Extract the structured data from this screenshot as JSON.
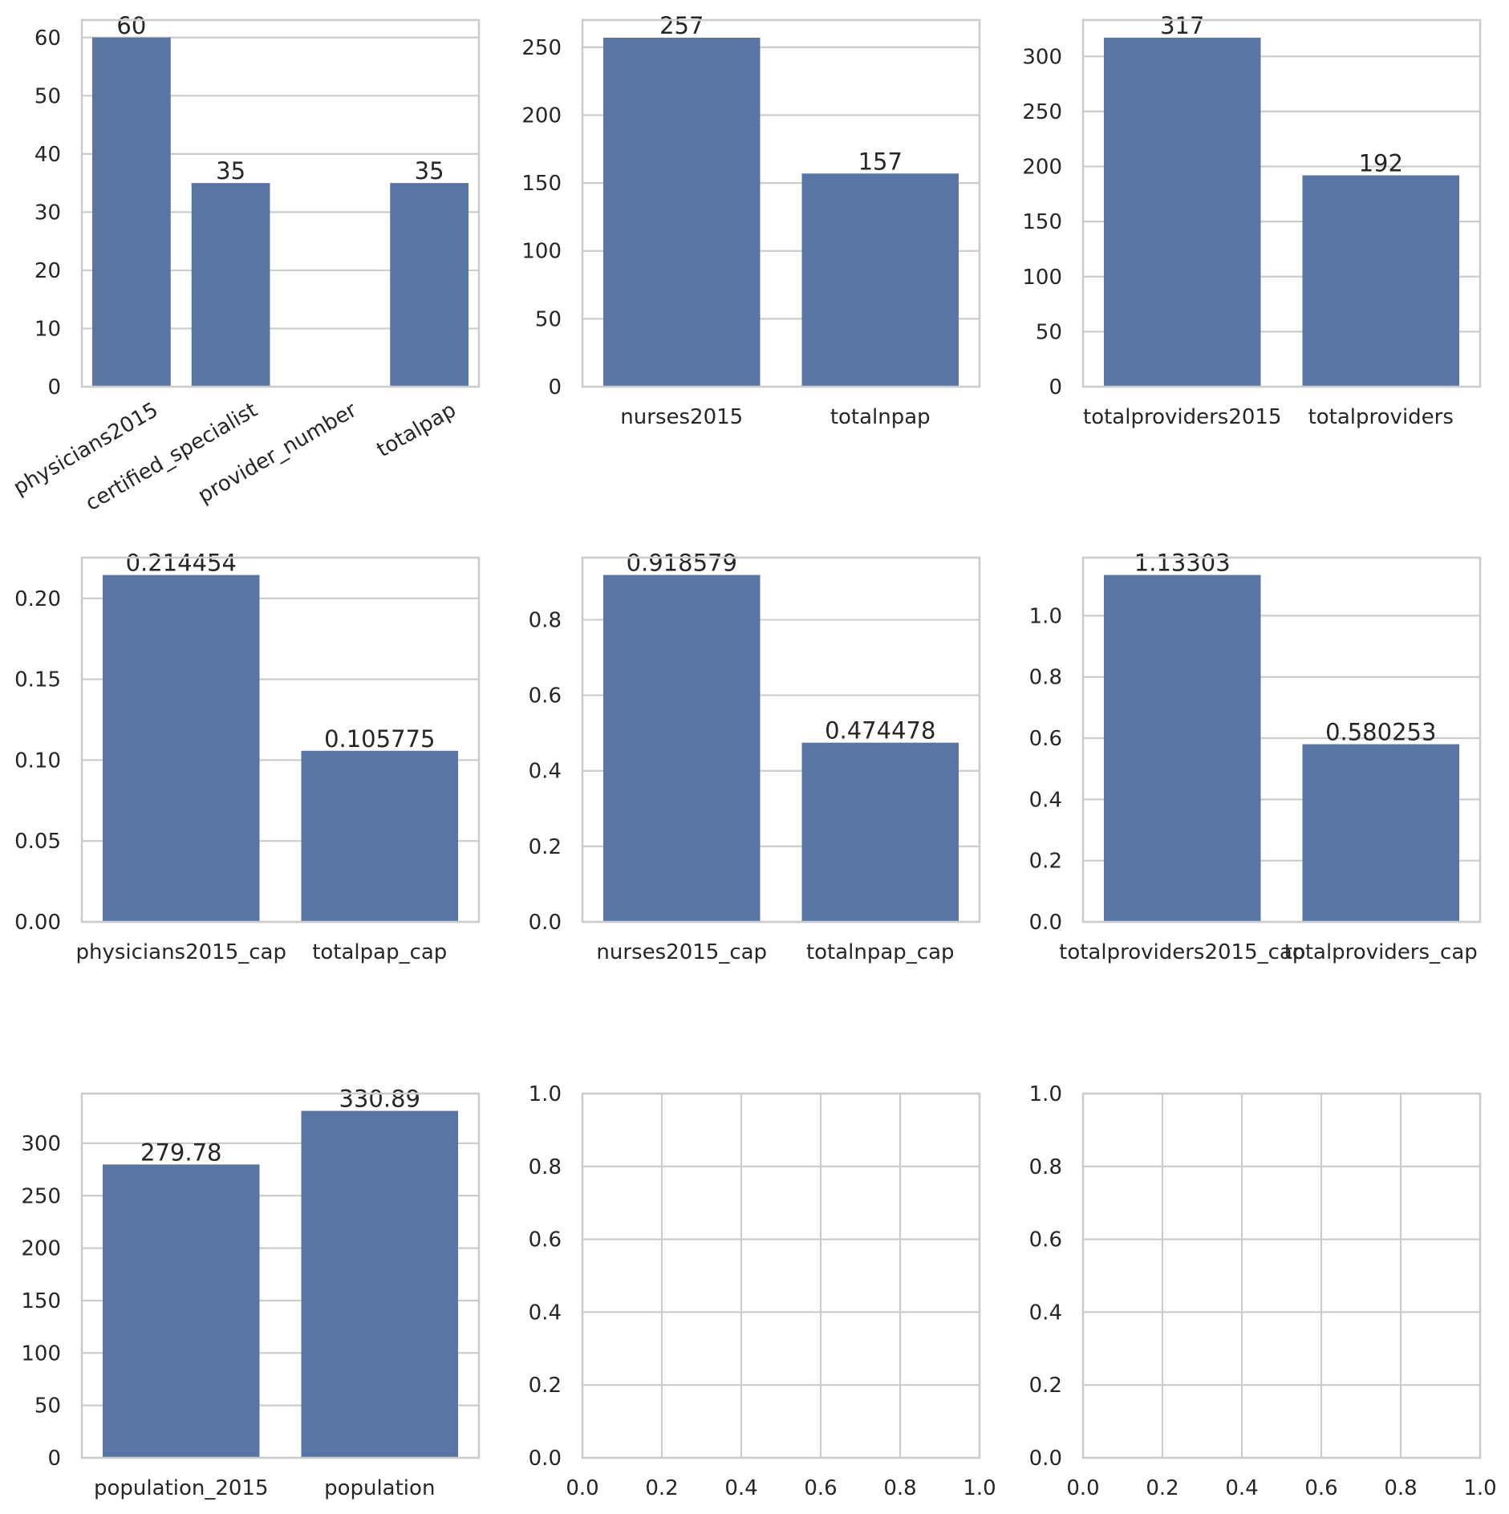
{
  "chart_data": [
    {
      "type": "bar",
      "categories": [
        "physicians2015",
        "certified_specialist",
        "provider_number",
        "totalpap"
      ],
      "values": [
        60,
        35,
        null,
        35
      ],
      "bar_labels": [
        "60",
        "35",
        "",
        "35"
      ],
      "ylim": [
        0,
        63
      ],
      "yticks": [
        0,
        10,
        20,
        30,
        40,
        50,
        60
      ],
      "ytick_labels": [
        "0",
        "10",
        "20",
        "30",
        "40",
        "50",
        "60"
      ],
      "xtick_rotation": 30,
      "grid": true
    },
    {
      "type": "bar",
      "categories": [
        "nurses2015",
        "totalnpap"
      ],
      "values": [
        257,
        157
      ],
      "bar_labels": [
        "257",
        "157"
      ],
      "ylim": [
        0,
        270
      ],
      "yticks": [
        0,
        50,
        100,
        150,
        200,
        250
      ],
      "ytick_labels": [
        "0",
        "50",
        "100",
        "150",
        "200",
        "250"
      ],
      "grid": true
    },
    {
      "type": "bar",
      "categories": [
        "totalproviders2015",
        "totalproviders"
      ],
      "values": [
        317,
        192
      ],
      "bar_labels": [
        "317",
        "192"
      ],
      "ylim": [
        0,
        333
      ],
      "yticks": [
        0,
        50,
        100,
        150,
        200,
        250,
        300
      ],
      "ytick_labels": [
        "0",
        "50",
        "100",
        "150",
        "200",
        "250",
        "300"
      ],
      "grid": true
    },
    {
      "type": "bar",
      "categories": [
        "physicians2015_cap",
        "totalpap_cap"
      ],
      "values": [
        0.214454,
        0.105775
      ],
      "bar_labels": [
        "0.214454",
        "0.105775"
      ],
      "ylim": [
        0,
        0.2252
      ],
      "yticks": [
        0.0,
        0.05,
        0.1,
        0.15,
        0.2
      ],
      "ytick_labels": [
        "0.00",
        "0.05",
        "0.10",
        "0.15",
        "0.20"
      ],
      "grid": true
    },
    {
      "type": "bar",
      "categories": [
        "nurses2015_cap",
        "totalnpap_cap"
      ],
      "values": [
        0.918579,
        0.474478
      ],
      "bar_labels": [
        "0.918579",
        "0.474478"
      ],
      "ylim": [
        0,
        0.9645
      ],
      "yticks": [
        0.0,
        0.2,
        0.4,
        0.6,
        0.8
      ],
      "ytick_labels": [
        "0.0",
        "0.2",
        "0.4",
        "0.6",
        "0.8"
      ],
      "grid": true
    },
    {
      "type": "bar",
      "categories": [
        "totalproviders2015_cap",
        "totalproviders_cap"
      ],
      "values": [
        1.13303,
        0.580253
      ],
      "bar_labels": [
        "1.13303",
        "0.580253"
      ],
      "ylim": [
        0,
        1.1897
      ],
      "yticks": [
        0.0,
        0.2,
        0.4,
        0.6,
        0.8,
        1.0
      ],
      "ytick_labels": [
        "0.0",
        "0.2",
        "0.4",
        "0.6",
        "0.8",
        "1.0"
      ],
      "grid": true
    },
    {
      "type": "bar",
      "categories": [
        "population_2015",
        "population"
      ],
      "values": [
        279.78,
        330.89
      ],
      "bar_labels": [
        "279.78",
        "330.89"
      ],
      "ylim": [
        0,
        347.4
      ],
      "yticks": [
        0,
        50,
        100,
        150,
        200,
        250,
        300
      ],
      "ytick_labels": [
        "0",
        "50",
        "100",
        "150",
        "200",
        "250",
        "300"
      ],
      "grid": true
    },
    {
      "type": "empty",
      "xlim": [
        0,
        1
      ],
      "ylim": [
        0,
        1
      ],
      "xticks": [
        0.0,
        0.2,
        0.4,
        0.6,
        0.8,
        1.0
      ],
      "xtick_labels": [
        "0.0",
        "0.2",
        "0.4",
        "0.6",
        "0.8",
        "1.0"
      ],
      "yticks": [
        0.0,
        0.2,
        0.4,
        0.6,
        0.8,
        1.0
      ],
      "ytick_labels": [
        "0.0",
        "0.2",
        "0.4",
        "0.6",
        "0.8",
        "1.0"
      ],
      "grid": true
    },
    {
      "type": "empty",
      "xlim": [
        0,
        1
      ],
      "ylim": [
        0,
        1
      ],
      "xticks": [
        0.0,
        0.2,
        0.4,
        0.6,
        0.8,
        1.0
      ],
      "xtick_labels": [
        "0.0",
        "0.2",
        "0.4",
        "0.6",
        "0.8",
        "1.0"
      ],
      "yticks": [
        0.0,
        0.2,
        0.4,
        0.6,
        0.8,
        1.0
      ],
      "ytick_labels": [
        "0.0",
        "0.2",
        "0.4",
        "0.6",
        "0.8",
        "1.0"
      ],
      "grid": true
    }
  ]
}
